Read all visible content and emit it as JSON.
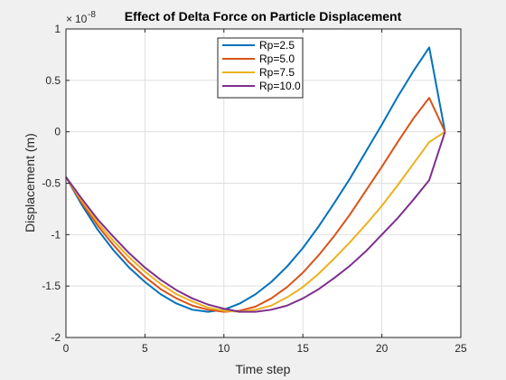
{
  "chart_data": {
    "type": "line",
    "title": "Effect of Delta Force on Particle Displacement",
    "xlabel": "Time step",
    "ylabel": "Displacement (m)",
    "y_exponent_label": "10",
    "y_exponent_power": "-8",
    "xlim": [
      0,
      25
    ],
    "ylim": [
      -2,
      1
    ],
    "xticks": [
      0,
      5,
      10,
      15,
      20,
      25
    ],
    "yticks": [
      -2,
      -1.5,
      -1,
      -0.5,
      0,
      0.5,
      1
    ],
    "grid": true,
    "legend_position": "top-center",
    "x": [
      0,
      1,
      2,
      3,
      4,
      5,
      6,
      7,
      8,
      9,
      10,
      11,
      12,
      13,
      14,
      15,
      16,
      17,
      18,
      19,
      20,
      21,
      22,
      23,
      24
    ],
    "series": [
      {
        "name": "Rp=2.5",
        "color": "#0072BD",
        "values": [
          -0.44,
          -0.71,
          -0.95,
          -1.15,
          -1.32,
          -1.46,
          -1.58,
          -1.67,
          -1.73,
          -1.75,
          -1.73,
          -1.67,
          -1.58,
          -1.46,
          -1.31,
          -1.13,
          -0.92,
          -0.69,
          -0.45,
          -0.19,
          0.07,
          0.34,
          0.59,
          0.82,
          0.0
        ]
      },
      {
        "name": "Rp=5.0",
        "color": "#D95319",
        "values": [
          -0.44,
          -0.69,
          -0.91,
          -1.1,
          -1.27,
          -1.41,
          -1.53,
          -1.62,
          -1.69,
          -1.73,
          -1.75,
          -1.74,
          -1.7,
          -1.62,
          -1.51,
          -1.37,
          -1.2,
          -1.01,
          -0.8,
          -0.57,
          -0.34,
          -0.1,
          0.13,
          0.33,
          0.0
        ]
      },
      {
        "name": "Rp=7.5",
        "color": "#EDB120",
        "values": [
          -0.44,
          -0.67,
          -0.88,
          -1.06,
          -1.22,
          -1.36,
          -1.48,
          -1.58,
          -1.65,
          -1.71,
          -1.74,
          -1.75,
          -1.73,
          -1.69,
          -1.61,
          -1.51,
          -1.38,
          -1.23,
          -1.07,
          -0.9,
          -0.72,
          -0.52,
          -0.31,
          -0.1,
          0.0
        ]
      },
      {
        "name": "Rp=10.0",
        "color": "#7E2F8E",
        "values": [
          -0.44,
          -0.65,
          -0.85,
          -1.02,
          -1.18,
          -1.32,
          -1.44,
          -1.54,
          -1.62,
          -1.68,
          -1.72,
          -1.75,
          -1.75,
          -1.73,
          -1.69,
          -1.62,
          -1.53,
          -1.42,
          -1.3,
          -1.16,
          -1.0,
          -0.84,
          -0.66,
          -0.47,
          0.0
        ]
      }
    ]
  }
}
